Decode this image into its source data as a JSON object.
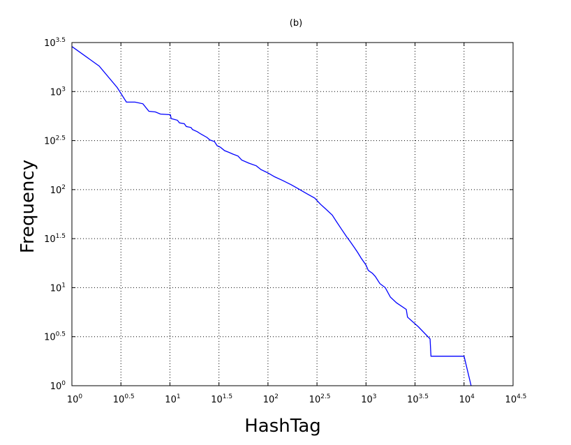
{
  "chart_data": {
    "type": "line",
    "title": "(b)",
    "xlabel": "HashTag",
    "ylabel": "Frequency",
    "xscale": "log10",
    "yscale": "log10",
    "xlim": [
      1,
      31623
    ],
    "ylim": [
      1,
      3162
    ],
    "grid": true,
    "x_ticks": [
      {
        "base": "10",
        "exp": "0"
      },
      {
        "base": "10",
        "exp": "0.5"
      },
      {
        "base": "10",
        "exp": "1"
      },
      {
        "base": "10",
        "exp": "1.5"
      },
      {
        "base": "10",
        "exp": "2"
      },
      {
        "base": "10",
        "exp": "2.5"
      },
      {
        "base": "10",
        "exp": "3"
      },
      {
        "base": "10",
        "exp": "3.5"
      },
      {
        "base": "10",
        "exp": "4"
      },
      {
        "base": "10",
        "exp": "4.5"
      }
    ],
    "y_ticks": [
      {
        "base": "10",
        "exp": "0"
      },
      {
        "base": "10",
        "exp": "0.5"
      },
      {
        "base": "10",
        "exp": "1"
      },
      {
        "base": "10",
        "exp": "1.5"
      },
      {
        "base": "10",
        "exp": "2"
      },
      {
        "base": "10",
        "exp": "2.5"
      },
      {
        "base": "10",
        "exp": "3"
      },
      {
        "base": "10",
        "exp": "3.5"
      }
    ],
    "series": [
      {
        "color": "#0000ff",
        "points": [
          [
            1,
            2880
          ],
          [
            1.9,
            1820
          ],
          [
            2.9,
            1100
          ],
          [
            3.6,
            780
          ],
          [
            4.4,
            780
          ],
          [
            5.3,
            750
          ],
          [
            6.1,
            630
          ],
          [
            7.1,
            620
          ],
          [
            8.0,
            590
          ],
          [
            10.1,
            580
          ],
          [
            10.3,
            530
          ],
          [
            11.9,
            510
          ],
          [
            12.5,
            480
          ],
          [
            14.0,
            470
          ],
          [
            14.7,
            440
          ],
          [
            16.4,
            430
          ],
          [
            17.0,
            410
          ],
          [
            19.0,
            390
          ],
          [
            20.6,
            370
          ],
          [
            23.9,
            340
          ],
          [
            25.6,
            320
          ],
          [
            28.4,
            310
          ],
          [
            30.3,
            280
          ],
          [
            32.8,
            270
          ],
          [
            36.0,
            250
          ],
          [
            39.9,
            240
          ],
          [
            44.0,
            230
          ],
          [
            49.4,
            220
          ],
          [
            54.0,
            200
          ],
          [
            64.0,
            186
          ],
          [
            76.0,
            175
          ],
          [
            85.0,
            160
          ],
          [
            100.0,
            148
          ],
          [
            117.0,
            135
          ],
          [
            141.0,
            124
          ],
          [
            173.0,
            112
          ],
          [
            207.0,
            101
          ],
          [
            248.0,
            91
          ],
          [
            300.0,
            82
          ],
          [
            343.0,
            71
          ],
          [
            385.0,
            64
          ],
          [
            453.0,
            55
          ],
          [
            500.0,
            47
          ],
          [
            558.0,
            40
          ],
          [
            635.0,
            33
          ],
          [
            682.0,
            30
          ],
          [
            754.0,
            26
          ],
          [
            820.0,
            23
          ],
          [
            893.0,
            20
          ],
          [
            1000.0,
            17
          ],
          [
            1055.0,
            15
          ],
          [
            1165.0,
            14
          ],
          [
            1244.0,
            13
          ],
          [
            1385.0,
            11
          ],
          [
            1571.0,
            10
          ],
          [
            1775.0,
            8
          ],
          [
            2048.0,
            7
          ],
          [
            2572.0,
            6
          ],
          [
            2650.0,
            5
          ],
          [
            3410.0,
            4
          ],
          [
            4500.0,
            3
          ],
          [
            4600.0,
            2
          ],
          [
            10000.0,
            2
          ],
          [
            11800.0,
            1
          ]
        ]
      }
    ]
  }
}
